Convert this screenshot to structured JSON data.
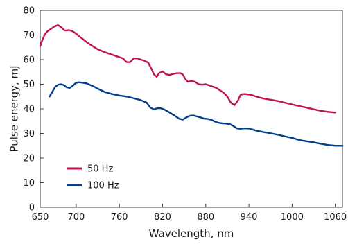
{
  "chart_data": {
    "type": "line",
    "xlabel": "Wavelength, nm",
    "ylabel": "Pulse energy, mJ",
    "xlim": [
      650,
      1070
    ],
    "ylim": [
      0,
      80
    ],
    "xticks": [
      650,
      700,
      760,
      820,
      880,
      940,
      1000,
      1060
    ],
    "yticks": [
      0,
      10,
      20,
      30,
      40,
      50,
      60,
      70,
      80
    ],
    "grid": false,
    "legend_position": "bottom-left",
    "series": [
      {
        "name": "50 Hz",
        "color": "#c0134f",
        "x": [
          650,
          653,
          656,
          660,
          665,
          670,
          675,
          680,
          683,
          686,
          690,
          695,
          700,
          705,
          710,
          715,
          720,
          730,
          740,
          750,
          760,
          765,
          770,
          775,
          780,
          785,
          790,
          795,
          800,
          805,
          808,
          812,
          815,
          820,
          825,
          830,
          835,
          840,
          845,
          848,
          852,
          855,
          860,
          865,
          870,
          875,
          880,
          885,
          890,
          895,
          900,
          905,
          910,
          915,
          920,
          925,
          928,
          932,
          935,
          940,
          945,
          950,
          960,
          970,
          980,
          990,
          1000,
          1010,
          1020,
          1030,
          1040,
          1050,
          1060
        ],
        "y": [
          65.5,
          68,
          70,
          71.5,
          72.5,
          73.5,
          74,
          73,
          72,
          71.8,
          72,
          71.5,
          70.5,
          69.3,
          68.2,
          67,
          66,
          64.2,
          63,
          62,
          61,
          60.5,
          59,
          59,
          60.5,
          60.5,
          60,
          59.5,
          58.8,
          56,
          54,
          53,
          54.5,
          55.2,
          54,
          53.8,
          54.2,
          54.5,
          54.5,
          54,
          52,
          51,
          51.3,
          51,
          50,
          49.8,
          50,
          49.5,
          49,
          48.5,
          47.5,
          46.5,
          45,
          42.5,
          41.5,
          43.5,
          45.5,
          46,
          46,
          45.8,
          45.5,
          45,
          44.2,
          43.7,
          43.2,
          42.5,
          41.8,
          41.1,
          40.5,
          39.8,
          39.2,
          38.8,
          38.5
        ]
      },
      {
        "name": "100 Hz",
        "color": "#003f8c",
        "x": [
          663,
          667,
          671,
          675,
          679,
          683,
          687,
          691,
          695,
          699,
          703,
          707,
          711,
          715,
          720,
          725,
          730,
          740,
          750,
          760,
          770,
          780,
          790,
          798,
          803,
          808,
          812,
          817,
          822,
          827,
          832,
          837,
          843,
          848,
          853,
          858,
          863,
          868,
          873,
          878,
          883,
          888,
          893,
          898,
          903,
          908,
          913,
          918,
          923,
          928,
          933,
          940,
          946,
          951,
          956,
          961,
          966,
          971,
          980,
          990,
          1000,
          1010,
          1020,
          1030,
          1040,
          1050,
          1060,
          1070
        ],
        "y": [
          45,
          47,
          49,
          49.8,
          50,
          49.6,
          48.7,
          48.5,
          49.3,
          50.4,
          50.8,
          50.7,
          50.5,
          50.3,
          49.6,
          49,
          48.2,
          46.8,
          46,
          45.4,
          45,
          44.3,
          43.5,
          42.5,
          40.5,
          39.8,
          40.2,
          40.3,
          39.8,
          39,
          38.1,
          37.2,
          36,
          35.6,
          36.5,
          37.2,
          37.3,
          36.9,
          36.5,
          36,
          35.9,
          35.5,
          34.8,
          34.3,
          34.1,
          34,
          33.8,
          33.1,
          32.1,
          31.9,
          32.1,
          32,
          31.5,
          31.1,
          30.8,
          30.5,
          30.3,
          30,
          29.5,
          28.8,
          28.2,
          27.3,
          26.8,
          26.4,
          25.8,
          25.3,
          25,
          25
        ]
      }
    ]
  }
}
